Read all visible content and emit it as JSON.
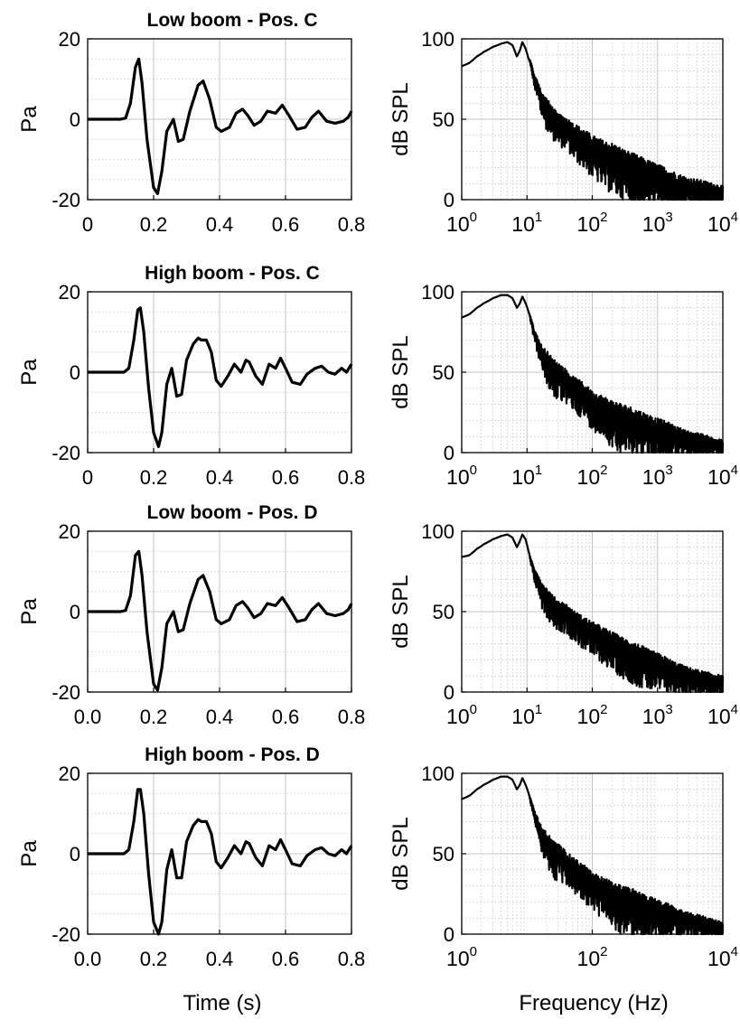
{
  "figure": {
    "bottom_labels": {
      "time": "Time (s)",
      "frequency": "Frequency (Hz)"
    }
  },
  "chart_data": [
    {
      "id": "time-1",
      "type": "line",
      "title": "Low boom - Pos. C",
      "xlabel": "",
      "ylabel": "Pa",
      "xlim": [
        0,
        0.8
      ],
      "ylim": [
        -20,
        20
      ],
      "xticks": [
        0,
        0.2,
        0.4,
        0.6,
        0.8
      ],
      "xtick_labels": [
        "0",
        "0.2",
        "0.4",
        "0.6",
        "0.8"
      ],
      "yticks": [
        -20,
        0,
        20
      ],
      "ytick_labels": [
        "-20",
        "0",
        "20"
      ],
      "grid": true,
      "series": [
        {
          "x": [
            0,
            0.1,
            0.115,
            0.13,
            0.145,
            0.155,
            0.165,
            0.18,
            0.2,
            0.212,
            0.225,
            0.24,
            0.26,
            0.275,
            0.29,
            0.31,
            0.335,
            0.35,
            0.37,
            0.39,
            0.405,
            0.43,
            0.45,
            0.47,
            0.485,
            0.505,
            0.525,
            0.545,
            0.57,
            0.59,
            0.61,
            0.635,
            0.66,
            0.68,
            0.7,
            0.725,
            0.75,
            0.775,
            0.79,
            0.8
          ],
          "y": [
            0,
            0,
            0.3,
            4,
            13,
            15,
            9,
            -5,
            -17,
            -18.5,
            -13,
            -3,
            0,
            -5.5,
            -5,
            2,
            8.5,
            9.5,
            5,
            -2,
            -3,
            -2,
            1.5,
            2.5,
            1,
            -1.5,
            -0.5,
            2,
            1.5,
            3.5,
            1,
            -2.5,
            -2,
            0.5,
            2,
            -0.5,
            -1,
            -0.5,
            0.5,
            2
          ]
        }
      ]
    },
    {
      "id": "freq-1",
      "type": "line",
      "title": "",
      "xlabel": "",
      "ylabel": "dB SPL",
      "xscale": "log",
      "xlim": [
        1,
        10000
      ],
      "ylim": [
        0,
        100
      ],
      "xticks": [
        1,
        10,
        100,
        1000,
        10000
      ],
      "xtick_labels": [
        [
          "10",
          "0"
        ],
        [
          "10",
          "1"
        ],
        [
          "10",
          "2"
        ],
        [
          "10",
          "3"
        ],
        [
          "10",
          "4"
        ]
      ],
      "yticks": [
        0,
        50,
        100
      ],
      "ytick_labels": [
        "0",
        "50",
        "100"
      ],
      "grid": true,
      "series": [
        {
          "x": [
            1,
            1.3,
            1.7,
            2.2,
            3,
            4,
            5,
            6,
            7,
            7.8,
            8.5,
            9.5,
            10.5,
            11.5,
            13,
            15,
            17,
            20,
            25,
            30,
            40,
            50,
            70,
            100,
            150,
            200,
            300,
            500,
            700,
            1000,
            1500,
            2000,
            3000,
            5000,
            7000,
            10000
          ],
          "y": [
            83,
            85,
            89,
            92,
            95,
            97,
            98,
            96,
            89,
            93,
            98,
            94,
            88,
            85,
            75,
            70,
            62,
            58,
            52,
            48,
            46,
            42,
            38,
            33,
            29,
            27,
            23,
            19,
            17,
            15,
            12,
            10,
            8,
            7,
            6,
            5
          ],
          "noise": [
            0,
            0,
            0,
            0,
            0,
            0,
            0,
            0,
            0,
            0,
            0,
            0,
            0,
            3,
            6,
            9,
            12,
            15,
            15,
            15,
            15,
            17,
            18,
            20,
            22,
            24,
            24,
            24,
            22,
            20,
            20,
            18,
            16,
            14,
            12,
            10
          ]
        }
      ]
    },
    {
      "id": "time-2",
      "type": "line",
      "title": "High boom - Pos. C",
      "xlabel": "",
      "ylabel": "Pa",
      "xlim": [
        0,
        0.8
      ],
      "ylim": [
        -20,
        20
      ],
      "xticks": [
        0,
        0.2,
        0.4,
        0.6,
        0.8
      ],
      "xtick_labels": [
        "0",
        "0.2",
        "0.4",
        "0.6",
        "0.8"
      ],
      "yticks": [
        -20,
        0,
        20
      ],
      "ytick_labels": [
        "-20",
        "0",
        "20"
      ],
      "grid": true,
      "series": [
        {
          "x": [
            0,
            0.11,
            0.125,
            0.14,
            0.152,
            0.16,
            0.17,
            0.185,
            0.2,
            0.215,
            0.225,
            0.24,
            0.255,
            0.27,
            0.285,
            0.3,
            0.32,
            0.335,
            0.345,
            0.36,
            0.375,
            0.39,
            0.405,
            0.425,
            0.445,
            0.465,
            0.48,
            0.49,
            0.51,
            0.53,
            0.55,
            0.57,
            0.585,
            0.6,
            0.62,
            0.645,
            0.665,
            0.69,
            0.71,
            0.73,
            0.75,
            0.77,
            0.785,
            0.8
          ],
          "y": [
            0,
            0,
            1,
            8,
            15.5,
            16,
            10,
            -4,
            -15,
            -18.5,
            -15,
            -3,
            1,
            -6,
            -5.5,
            3,
            7,
            8.5,
            8,
            8,
            5,
            -2,
            -3.5,
            -1,
            2,
            0,
            3,
            2.5,
            -1,
            -3,
            2,
            1,
            3.5,
            1,
            -2.5,
            -3,
            -0.5,
            1,
            1.5,
            0,
            -0.5,
            1,
            0,
            2
          ]
        }
      ]
    },
    {
      "id": "freq-2",
      "type": "line",
      "title": "",
      "xlabel": "",
      "ylabel": "dB SPL",
      "xscale": "log",
      "xlim": [
        1,
        10000
      ],
      "ylim": [
        0,
        100
      ],
      "xticks": [
        1,
        10,
        100,
        1000,
        10000
      ],
      "xtick_labels": [
        [
          "10",
          "0"
        ],
        [
          "10",
          "1"
        ],
        [
          "10",
          "2"
        ],
        [
          "10",
          "3"
        ],
        [
          "10",
          "4"
        ]
      ],
      "yticks": [
        0,
        50,
        100
      ],
      "ytick_labels": [
        "0",
        "50",
        "100"
      ],
      "grid": true,
      "series": [
        {
          "x": [
            1,
            1.3,
            1.7,
            2.2,
            3,
            4,
            5,
            6,
            7,
            7.8,
            8.5,
            9.5,
            10.5,
            11.5,
            13,
            15,
            17,
            20,
            25,
            30,
            40,
            50,
            70,
            100,
            150,
            200,
            300,
            500,
            700,
            1000,
            1500,
            2000,
            3000,
            5000,
            7000,
            10000
          ],
          "y": [
            84,
            86,
            90,
            93,
            96,
            98,
            98,
            96,
            90,
            93,
            97,
            93,
            88,
            83,
            74,
            68,
            62,
            58,
            52,
            50,
            46,
            42,
            38,
            32,
            28,
            25,
            22,
            19,
            17,
            15,
            13,
            11,
            9,
            8,
            6,
            5
          ],
          "noise": [
            0,
            0,
            0,
            0,
            0,
            0,
            0,
            0,
            0,
            0,
            0,
            0,
            0,
            3,
            6,
            9,
            12,
            16,
            18,
            18,
            16,
            16,
            17,
            18,
            20,
            22,
            23,
            22,
            20,
            18,
            16,
            14,
            12,
            10,
            9,
            8
          ]
        }
      ]
    },
    {
      "id": "time-3",
      "type": "line",
      "title": "Low boom - Pos. D",
      "xlabel": "",
      "ylabel": "Pa",
      "xlim": [
        0,
        0.8
      ],
      "ylim": [
        -20,
        20
      ],
      "xticks": [
        0,
        0.2,
        0.4,
        0.6,
        0.8
      ],
      "xtick_labels": [
        "0.0",
        "0.2",
        "0.4",
        "0.6",
        "0.8"
      ],
      "yticks": [
        -20,
        0,
        20
      ],
      "ytick_labels": [
        "-20",
        "0",
        "20"
      ],
      "grid": true,
      "series": [
        {
          "x": [
            0,
            0.1,
            0.115,
            0.13,
            0.145,
            0.155,
            0.165,
            0.18,
            0.2,
            0.212,
            0.225,
            0.24,
            0.26,
            0.275,
            0.29,
            0.31,
            0.335,
            0.35,
            0.37,
            0.39,
            0.405,
            0.43,
            0.45,
            0.47,
            0.485,
            0.505,
            0.525,
            0.545,
            0.57,
            0.59,
            0.61,
            0.635,
            0.66,
            0.68,
            0.7,
            0.725,
            0.75,
            0.775,
            0.79,
            0.8
          ],
          "y": [
            0,
            0,
            0.3,
            4,
            14,
            15,
            9,
            -5,
            -18,
            -19.5,
            -14,
            -3,
            0,
            -5,
            -4.5,
            2,
            8,
            9,
            5,
            -2,
            -3,
            -2,
            1.5,
            2.5,
            1,
            -1.5,
            -0.5,
            2,
            1.5,
            3.5,
            1,
            -2.5,
            -2,
            0.5,
            2,
            -0.5,
            -1,
            -0.5,
            0.5,
            2
          ]
        }
      ]
    },
    {
      "id": "freq-3",
      "type": "line",
      "title": "",
      "xlabel": "",
      "ylabel": "dB SPL",
      "xscale": "log",
      "xlim": [
        1,
        10000
      ],
      "ylim": [
        0,
        100
      ],
      "xticks": [
        1,
        10,
        100,
        1000,
        10000
      ],
      "xtick_labels": [
        [
          "10",
          "0"
        ],
        [
          "10",
          "1"
        ],
        [
          "10",
          "2"
        ],
        [
          "10",
          "3"
        ],
        [
          "10",
          "4"
        ]
      ],
      "yticks": [
        0,
        50,
        100
      ],
      "ytick_labels": [
        "0",
        "50",
        "100"
      ],
      "grid": true,
      "series": [
        {
          "x": [
            1,
            1.3,
            1.7,
            2.2,
            3,
            4,
            5,
            6,
            7,
            7.8,
            8.5,
            9.5,
            10.5,
            11.5,
            13,
            15,
            17,
            20,
            25,
            30,
            40,
            50,
            70,
            100,
            150,
            200,
            300,
            500,
            700,
            1000,
            1500,
            2000,
            3000,
            5000,
            7000,
            10000
          ],
          "y": [
            84,
            85,
            89,
            92,
            95,
            97,
            98,
            96,
            90,
            94,
            98,
            95,
            88,
            82,
            74,
            70,
            64,
            60,
            55,
            52,
            50,
            46,
            42,
            38,
            34,
            31,
            27,
            23,
            20,
            18,
            15,
            13,
            11,
            9,
            8,
            7
          ],
          "noise": [
            0,
            0,
            0,
            0,
            0,
            0,
            0,
            0,
            0,
            0,
            0,
            0,
            0,
            3,
            6,
            9,
            12,
            14,
            14,
            14,
            14,
            14,
            15,
            16,
            17,
            18,
            19,
            20,
            19,
            18,
            16,
            14,
            12,
            11,
            10,
            9
          ]
        }
      ]
    },
    {
      "id": "time-4",
      "type": "line",
      "title": "High boom - Pos. D",
      "xlabel": "",
      "ylabel": "Pa",
      "xlim": [
        0,
        0.8
      ],
      "ylim": [
        -20,
        20
      ],
      "xticks": [
        0,
        0.2,
        0.4,
        0.6,
        0.8
      ],
      "xtick_labels": [
        "0.0",
        "0.2",
        "0.4",
        "0.6",
        "0.8"
      ],
      "yticks": [
        -20,
        0,
        20
      ],
      "ytick_labels": [
        "-20",
        "0",
        "20"
      ],
      "grid": true,
      "series": [
        {
          "x": [
            0,
            0.11,
            0.125,
            0.14,
            0.152,
            0.16,
            0.17,
            0.185,
            0.2,
            0.215,
            0.225,
            0.24,
            0.255,
            0.27,
            0.285,
            0.3,
            0.32,
            0.335,
            0.345,
            0.36,
            0.375,
            0.39,
            0.405,
            0.425,
            0.445,
            0.465,
            0.48,
            0.49,
            0.51,
            0.53,
            0.55,
            0.57,
            0.585,
            0.6,
            0.62,
            0.645,
            0.665,
            0.69,
            0.71,
            0.73,
            0.75,
            0.77,
            0.785,
            0.8
          ],
          "y": [
            0,
            0,
            1,
            8,
            16,
            16,
            10,
            -5,
            -17,
            -20,
            -17,
            -4,
            1,
            -6,
            -6,
            3,
            7,
            8.5,
            8,
            8,
            5,
            -2,
            -3.5,
            -1,
            2,
            0,
            3,
            2.5,
            -1,
            -3,
            2,
            1,
            3.5,
            1,
            -2.5,
            -3,
            -0.5,
            1,
            1.5,
            0,
            -0.5,
            1,
            0,
            2
          ]
        }
      ]
    },
    {
      "id": "freq-4",
      "type": "line",
      "title": "",
      "xlabel": "",
      "ylabel": "dB SPL",
      "xscale": "log",
      "xlim": [
        1,
        10000
      ],
      "ylim": [
        0,
        100
      ],
      "xticks": [
        1,
        100,
        10000
      ],
      "xtick_labels": [
        [
          "10",
          "0"
        ],
        [
          "10",
          "2"
        ],
        [
          "10",
          "4"
        ]
      ],
      "yticks": [
        0,
        50,
        100
      ],
      "ytick_labels": [
        "0",
        "50",
        "100"
      ],
      "grid": true,
      "series": [
        {
          "x": [
            1,
            1.3,
            1.7,
            2.2,
            3,
            4,
            5,
            6,
            7,
            7.8,
            8.5,
            9.5,
            10.5,
            11.5,
            13,
            15,
            17,
            20,
            25,
            30,
            40,
            50,
            70,
            100,
            150,
            200,
            300,
            500,
            700,
            1000,
            1500,
            2000,
            3000,
            5000,
            7000,
            10000
          ],
          "y": [
            84,
            86,
            90,
            93,
            96,
            98,
            98,
            96,
            90,
            93,
            97,
            93,
            88,
            83,
            75,
            68,
            62,
            58,
            52,
            50,
            46,
            42,
            38,
            32,
            28,
            25,
            22,
            19,
            17,
            15,
            13,
            11,
            9,
            8,
            6,
            5
          ],
          "noise": [
            0,
            0,
            0,
            0,
            0,
            0,
            0,
            0,
            0,
            0,
            0,
            0,
            0,
            3,
            6,
            9,
            12,
            16,
            18,
            18,
            16,
            16,
            17,
            18,
            20,
            22,
            23,
            22,
            20,
            18,
            16,
            14,
            12,
            10,
            9,
            8
          ]
        }
      ]
    }
  ]
}
